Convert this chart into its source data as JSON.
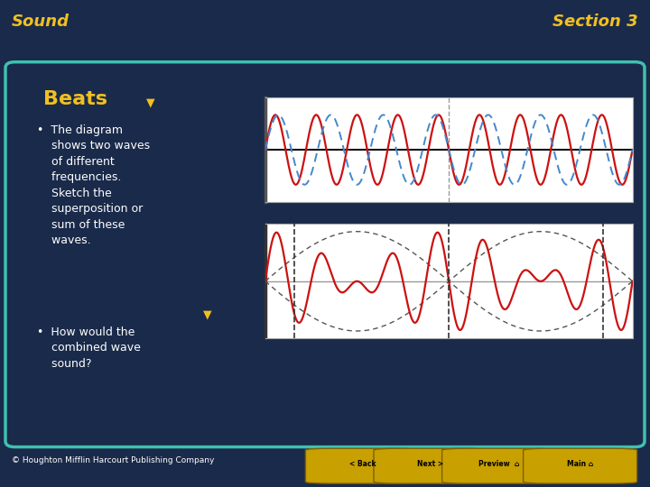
{
  "bg_dark": "#1a2a4a",
  "bg_header": "#2a3a5a",
  "bg_panel": "#0d3060",
  "teal_border": "#40c0b0",
  "teal_strip": "#40b0a0",
  "title_color": "#f0c020",
  "text_color": "#ffffff",
  "wave1_color": "#cc1111",
  "wave2_color": "#4488cc",
  "superposition_color": "#cc1111",
  "envelope_color": "#555555",
  "axis_color": "#111111",
  "axis_color2": "#999999",
  "plot_bg": "#ffffff",
  "plot_border": "#aaaaaa",
  "header_title_left": "Sound",
  "header_title_right": "Section 3",
  "section_title": "Beats",
  "footer": "© Houghton Mifflin Harcourt Publishing Company",
  "freq1": 7,
  "freq2": 9,
  "num_points": 2000
}
